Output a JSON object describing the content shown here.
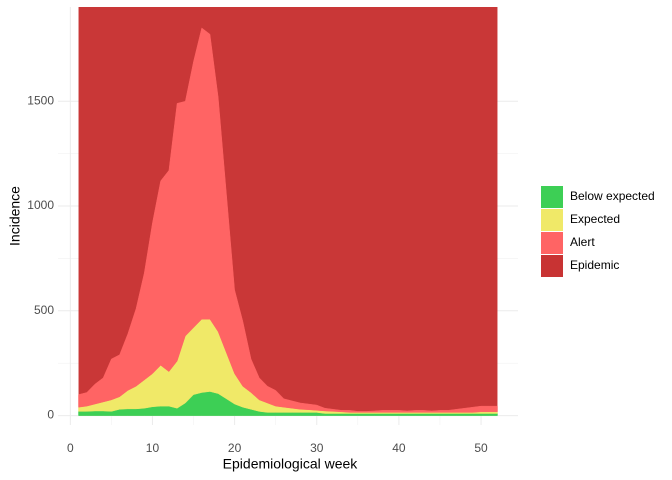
{
  "chart_data": {
    "type": "stacked-area",
    "x_label": "Epidemiological week",
    "y_label": "Incidence",
    "x": [
      1,
      2,
      3,
      4,
      5,
      6,
      7,
      8,
      9,
      10,
      11,
      12,
      13,
      14,
      15,
      16,
      17,
      18,
      19,
      20,
      21,
      22,
      23,
      24,
      25,
      26,
      27,
      28,
      29,
      30,
      31,
      32,
      33,
      34,
      35,
      36,
      37,
      38,
      39,
      40,
      41,
      42,
      43,
      44,
      45,
      46,
      47,
      48,
      49,
      50,
      51,
      52
    ],
    "series": [
      {
        "name": "Below expected",
        "color": "#3dcf55",
        "values": [
          20,
          20,
          22,
          22,
          20,
          30,
          32,
          32,
          35,
          42,
          45,
          45,
          35,
          60,
          100,
          110,
          115,
          105,
          80,
          55,
          40,
          30,
          20,
          15,
          15,
          15,
          15,
          15,
          15,
          15,
          10,
          10,
          10,
          10,
          10,
          10,
          10,
          10,
          10,
          10,
          10,
          10,
          10,
          10,
          10,
          10,
          10,
          10,
          10,
          10,
          10,
          10
        ]
      },
      {
        "name": "Expected",
        "color": "#f0e968",
        "values": [
          20,
          25,
          33,
          43,
          55,
          60,
          88,
          108,
          135,
          158,
          195,
          165,
          225,
          320,
          320,
          350,
          345,
          295,
          220,
          145,
          100,
          80,
          55,
          45,
          30,
          25,
          20,
          15,
          13,
          10,
          12,
          10,
          8,
          5,
          5,
          5,
          5,
          5,
          5,
          5,
          5,
          5,
          5,
          5,
          5,
          5,
          5,
          5,
          5,
          8,
          8,
          8
        ]
      },
      {
        "name": "Alert",
        "color": "#ff6464",
        "values": [
          60,
          65,
          95,
          115,
          195,
          200,
          270,
          370,
          510,
          720,
          880,
          960,
          1230,
          1120,
          1270,
          1390,
          1360,
          1120,
          760,
          400,
          310,
          160,
          105,
          80,
          75,
          40,
          35,
          30,
          27,
          25,
          13,
          10,
          7,
          10,
          5,
          5,
          7,
          10,
          10,
          10,
          7,
          10,
          10,
          7,
          10,
          10,
          15,
          20,
          25,
          27,
          27,
          27
        ]
      },
      {
        "name": "Epidemic",
        "color": "#c83333"
      }
    ],
    "xlim": [
      -1.5,
      54.5
    ],
    "xticks": [
      0,
      10,
      20,
      30,
      40,
      50
    ],
    "ylim": [
      -45,
      1950
    ],
    "yticks": [
      0,
      500,
      1000,
      1500
    ],
    "grid": true,
    "legend": "right"
  }
}
